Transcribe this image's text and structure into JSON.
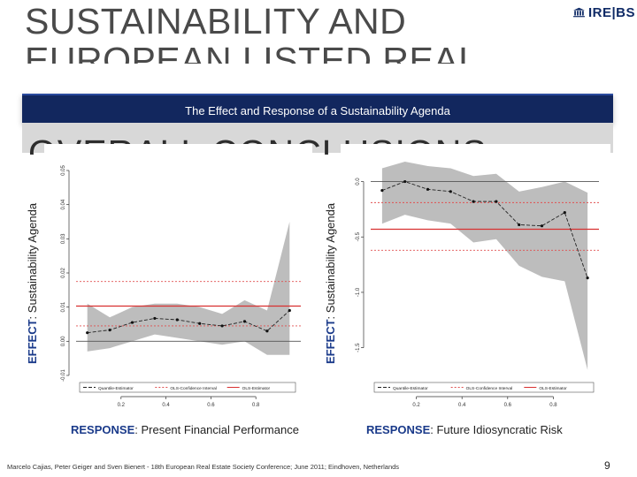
{
  "slide": {
    "title_line1": "SUSTAINABILITY AND",
    "title_line2": "EUROPEAN LISTED REAL",
    "overlay_text": "OVERALL CONCLUSIONS",
    "banner": "The Effect and Response of a Sustainability Agenda",
    "logo_text": "IRE|BS",
    "footer": "Marcelo Cajias, Peter Geiger and Sven Bienert - 18th European Real Estate Society Conference; June 2011; Eindhoven, Netherlands",
    "page_number": "9"
  },
  "labels": {
    "effect_prefix": "EFFECT",
    "effect_rest": ": Sustainability Agenda",
    "response_prefix": "RESPONSE",
    "left_response_rest": ": Present Financial Performance",
    "right_response_rest": ": Future Idiosyncratic Risk"
  },
  "chart_data": [
    {
      "type": "line",
      "x": [
        0.05,
        0.15,
        0.25,
        0.35,
        0.45,
        0.55,
        0.65,
        0.75,
        0.85,
        0.95
      ],
      "ylim": [
        -0.01,
        0.05
      ],
      "y_ticks": [
        -0.01,
        0.0,
        0.01,
        0.02,
        0.03,
        0.04,
        0.05
      ],
      "y_tick_labels": [
        "-0.01",
        "0.00",
        "0.01",
        "0.02",
        "0.03",
        "0.04",
        "0.05"
      ],
      "x_ticks": [
        0.2,
        0.4,
        0.6,
        0.8
      ],
      "x_tick_labels": [
        "0.2",
        "0.4",
        "0.6",
        "0.8"
      ],
      "quantile_estimate": [
        0.0025,
        0.0033,
        0.0055,
        0.0067,
        0.0063,
        0.0052,
        0.0045,
        0.0058,
        0.003,
        0.009
      ],
      "ci_lower": [
        -0.003,
        -0.002,
        0.0,
        0.002,
        0.001,
        0.0,
        -0.001,
        0.0,
        -0.004,
        -0.004
      ],
      "ci_upper": [
        0.011,
        0.007,
        0.01,
        0.011,
        0.011,
        0.01,
        0.008,
        0.012,
        0.009,
        0.035
      ],
      "ols_estimate": 0.0103,
      "ols_ci": [
        0.0045,
        0.0175
      ],
      "legend": [
        "Quantile-Estimator",
        "OLS-Confidence Interval",
        "OLS-Estimator"
      ]
    },
    {
      "type": "line",
      "x": [
        0.05,
        0.15,
        0.25,
        0.35,
        0.45,
        0.55,
        0.65,
        0.75,
        0.85,
        0.95
      ],
      "ylim": [
        -1.75,
        0.1
      ],
      "y_ticks": [
        -1.5,
        -1.0,
        -0.5,
        0.0
      ],
      "y_tick_labels": [
        "-1.5",
        "-1.0",
        "-0.5",
        "0.0"
      ],
      "x_ticks": [
        0.2,
        0.4,
        0.6,
        0.8
      ],
      "x_tick_labels": [
        "0.2",
        "0.4",
        "0.6",
        "0.8"
      ],
      "quantile_estimate": [
        -0.08,
        0.0,
        -0.07,
        -0.09,
        -0.18,
        -0.18,
        -0.39,
        -0.4,
        -0.28,
        -0.87
      ],
      "ci_lower": [
        -0.38,
        -0.3,
        -0.35,
        -0.38,
        -0.55,
        -0.52,
        -0.76,
        -0.86,
        -0.9,
        -1.7
      ],
      "ci_upper": [
        0.12,
        0.18,
        0.14,
        0.12,
        0.05,
        0.07,
        -0.09,
        -0.05,
        0.0,
        -0.1
      ],
      "ols_estimate": -0.43,
      "ols_ci": [
        -0.19,
        -0.62
      ],
      "legend": [
        "Quantile-Estimator",
        "OLS-Confidence Interval",
        "OLS-Estimator"
      ]
    }
  ]
}
